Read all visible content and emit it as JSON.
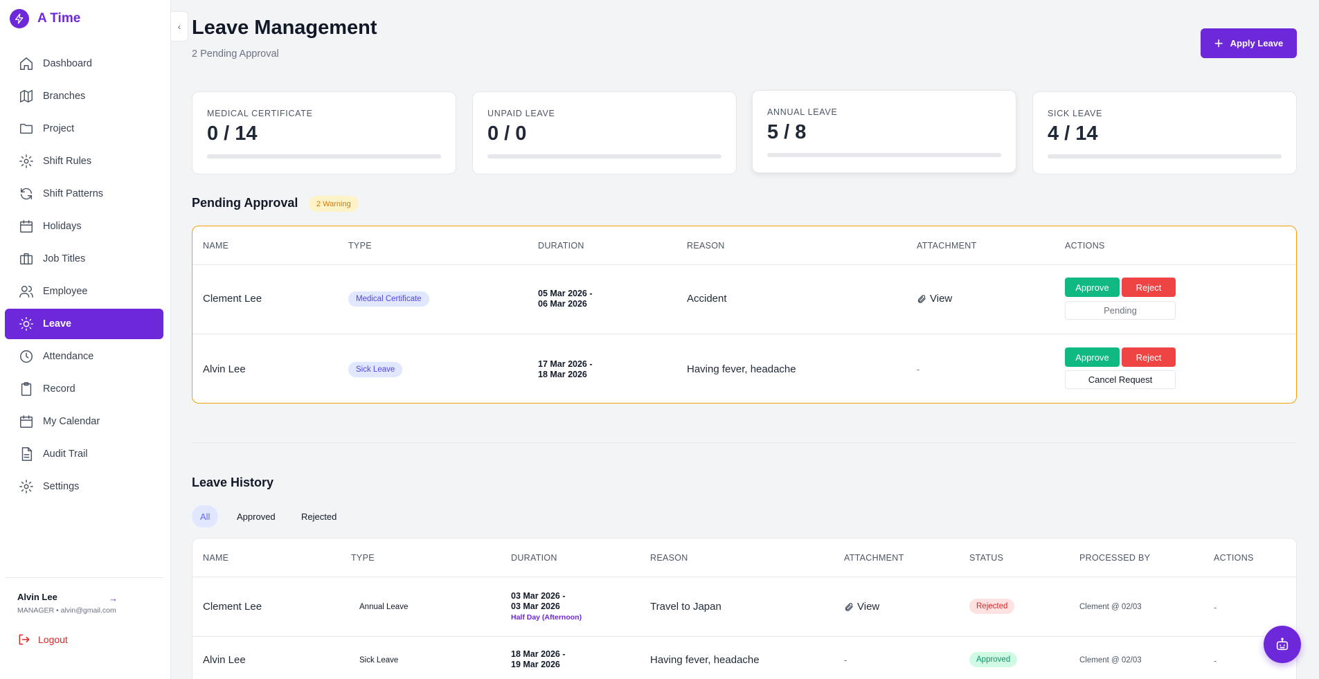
{
  "app": {
    "name": "A Time"
  },
  "sidebar": {
    "items": [
      {
        "label": "Dashboard",
        "icon": "home-icon"
      },
      {
        "label": "Branches",
        "icon": "map-icon"
      },
      {
        "label": "Project",
        "icon": "folder-icon"
      },
      {
        "label": "Shift Rules",
        "icon": "gear-icon"
      },
      {
        "label": "Shift Patterns",
        "icon": "refresh-icon"
      },
      {
        "label": "Holidays",
        "icon": "calendar-icon"
      },
      {
        "label": "Job Titles",
        "icon": "briefcase-icon"
      },
      {
        "label": "Employee",
        "icon": "users-icon"
      },
      {
        "label": "Leave",
        "icon": "sun-icon",
        "active": true
      },
      {
        "label": "Attendance",
        "icon": "clock-icon"
      },
      {
        "label": "Record",
        "icon": "clipboard-icon"
      },
      {
        "label": "My Calendar",
        "icon": "calendar-icon"
      },
      {
        "label": "Audit Trail",
        "icon": "document-icon"
      },
      {
        "label": "Settings",
        "icon": "gear-icon"
      }
    ],
    "user": {
      "name": "Alvin Lee",
      "meta": "MANAGER • alvin@gmail.com"
    },
    "logout_label": "Logout"
  },
  "header": {
    "title": "Leave Management",
    "subtitle": "2 Pending Approval",
    "apply_label": "Apply Leave"
  },
  "stats": [
    {
      "label": "Medical Certificate",
      "value": "0 / 14"
    },
    {
      "label": "Unpaid Leave",
      "value": "0 / 0"
    },
    {
      "label": "Annual Leave",
      "value": "5 / 8"
    },
    {
      "label": "Sick Leave",
      "value": "4 / 14"
    }
  ],
  "pending": {
    "title": "Pending Approval",
    "badge": "2 Warning",
    "columns": [
      "Name",
      "Type",
      "Duration",
      "Reason",
      "Attachment",
      "Actions"
    ],
    "approve_label": "Approve",
    "reject_label": "Reject",
    "rows": [
      {
        "name": "Clement Lee",
        "type": "Medical Certificate",
        "duration_from": "05 Mar 2026 -",
        "duration_to": "06 Mar 2026",
        "reason": "Accident",
        "attachment": "View",
        "secondary": "Pending"
      },
      {
        "name": "Alvin Lee",
        "type": "Sick Leave",
        "duration_from": "17 Mar 2026 -",
        "duration_to": "18 Mar 2026",
        "reason": "Having fever, headache",
        "attachment": "-",
        "secondary": "Cancel Request"
      }
    ]
  },
  "history": {
    "title": "Leave History",
    "filters": [
      "All",
      "Approved",
      "Rejected"
    ],
    "active_filter": "All",
    "columns": [
      "Name",
      "Type",
      "Duration",
      "Reason",
      "Attachment",
      "Status",
      "Processed By",
      "Actions"
    ],
    "rows": [
      {
        "name": "Clement Lee",
        "type": "Annual Leave",
        "duration_from": "03 Mar 2026 -",
        "duration_to": "03 Mar 2026",
        "note": "Half Day (Afternoon)",
        "reason": "Travel to Japan",
        "attachment": "View",
        "status": "Rejected",
        "processed_by": "Clement @ 02/03",
        "actions": "-"
      },
      {
        "name": "Alvin Lee",
        "type": "Sick Leave",
        "duration_from": "18 Mar 2026 -",
        "duration_to": "19 Mar 2026",
        "note": "",
        "reason": "Having fever, headache",
        "attachment": "-",
        "status": "Approved",
        "processed_by": "Clement @ 02/03",
        "actions": "-"
      }
    ]
  },
  "colors": {
    "primary": "#6d28d9",
    "approve": "#10b981",
    "reject": "#ef4444",
    "warning": "#f59e0b"
  }
}
